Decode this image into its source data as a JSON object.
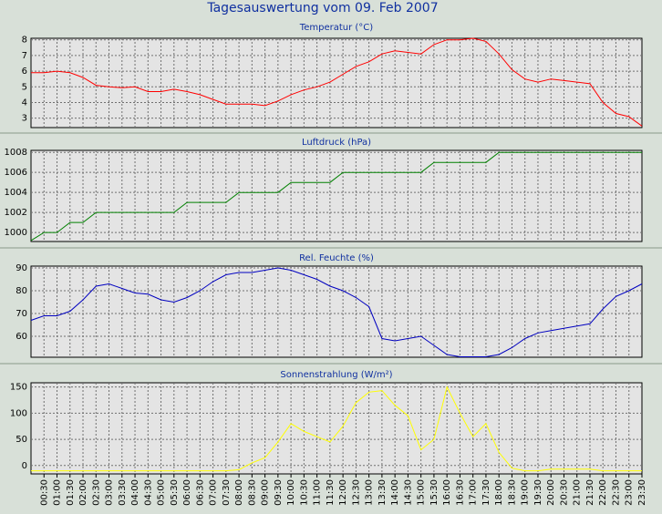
{
  "title": "Tagesauswertung vom 09. Feb 2007",
  "chart_data": [
    {
      "type": "line",
      "title": "Temperatur (°C)",
      "ylim": [
        2.4,
        8.1
      ],
      "yticks": [
        3,
        4,
        5,
        6,
        7,
        8
      ],
      "grid": true,
      "series": [
        {
          "name": "Temperatur",
          "color": "#ff0000",
          "values": [
            5.9,
            5.9,
            6.0,
            5.9,
            5.6,
            5.1,
            5.0,
            4.95,
            5.0,
            4.7,
            4.7,
            4.85,
            4.7,
            4.5,
            4.2,
            3.9,
            3.9,
            3.9,
            3.8,
            4.1,
            4.5,
            4.8,
            5.0,
            5.3,
            5.8,
            6.3,
            6.6,
            7.1,
            7.3,
            7.2,
            7.1,
            7.7,
            8.0,
            8.0,
            8.1,
            7.9,
            7.1,
            6.1,
            5.5,
            5.3,
            5.5,
            5.4,
            5.3,
            5.2,
            4.0,
            3.3,
            3.1,
            2.5
          ]
        }
      ]
    },
    {
      "type": "line",
      "title": "Luftdruck (hPa)",
      "ylim": [
        999.1,
        1008.2
      ],
      "yticks": [
        1000,
        1002,
        1004,
        1006,
        1008
      ],
      "grid": true,
      "series": [
        {
          "name": "Luftdruck",
          "color": "#008000",
          "values": [
            999.2,
            1000,
            1000,
            1001,
            1001,
            1002,
            1002,
            1002,
            1002,
            1002,
            1002,
            1002,
            1003,
            1003,
            1003,
            1003,
            1004,
            1004,
            1004,
            1004,
            1005,
            1005,
            1005,
            1005,
            1006,
            1006,
            1006,
            1006,
            1006,
            1006,
            1006,
            1007,
            1007,
            1007,
            1007,
            1007,
            1008,
            1008,
            1008,
            1008,
            1008,
            1008,
            1008,
            1008,
            1008,
            1008,
            1008,
            1008
          ]
        }
      ]
    },
    {
      "type": "line",
      "title": "Rel. Feuchte (%)",
      "ylim": [
        50.8,
        90.8
      ],
      "yticks": [
        60,
        70,
        80,
        90
      ],
      "grid": true,
      "series": [
        {
          "name": "Rel. Feuchte",
          "color": "#0000c0",
          "values": [
            67,
            69,
            69,
            71,
            76,
            82,
            83,
            81,
            79,
            78.5,
            76,
            75,
            77,
            80,
            84,
            87,
            88,
            88,
            89,
            90,
            89,
            87,
            85,
            82,
            80,
            77,
            73,
            59,
            58,
            59,
            60,
            56,
            52,
            51,
            51,
            51,
            52,
            55,
            59,
            61.5,
            62.5,
            63.5,
            64.5,
            65.5,
            72,
            77.5,
            80,
            83
          ]
        }
      ]
    },
    {
      "type": "line",
      "title": "Sonnenstrahlung (W/m²)",
      "ylim": [
        -16,
        158
      ],
      "yticks": [
        0,
        50,
        100,
        150
      ],
      "grid": true,
      "categories": [
        null,
        "00:30",
        "01:00",
        "01:30",
        "02:00",
        "02:30",
        "03:00",
        "03:30",
        "04:00",
        "04:30",
        "05:00",
        "05:30",
        "06:00",
        "06:30",
        "07:00",
        "07:30",
        "08:00",
        "08:30",
        "09:00",
        "09:30",
        "10:00",
        "10:30",
        "11:00",
        "11:30",
        "12:00",
        "12:30",
        "13:00",
        "13:30",
        "14:00",
        "14:30",
        "15:00",
        "15:30",
        "16:00",
        "16:30",
        "17:00",
        "17:30",
        "18:00",
        "18:30",
        "19:00",
        "19:30",
        "20:00",
        "20:30",
        "21:00",
        "21:30",
        "22:00",
        "22:30",
        "23:00",
        "23:30"
      ],
      "series": [
        {
          "name": "Sonnenstrahlung",
          "color": "#ffff00",
          "values": [
            -10,
            -10,
            -10,
            -10,
            -10,
            -10,
            -10,
            -10,
            -10,
            -10,
            -10,
            -10,
            -10,
            -10,
            -10,
            -10,
            -8,
            5,
            15,
            45,
            80,
            65,
            55,
            45,
            75,
            120,
            140,
            143,
            115,
            95,
            30,
            50,
            150,
            100,
            55,
            80,
            25,
            -5,
            -10,
            -10,
            -7,
            -7,
            -7,
            -7,
            -10,
            -10,
            -10,
            -10
          ]
        }
      ]
    }
  ]
}
